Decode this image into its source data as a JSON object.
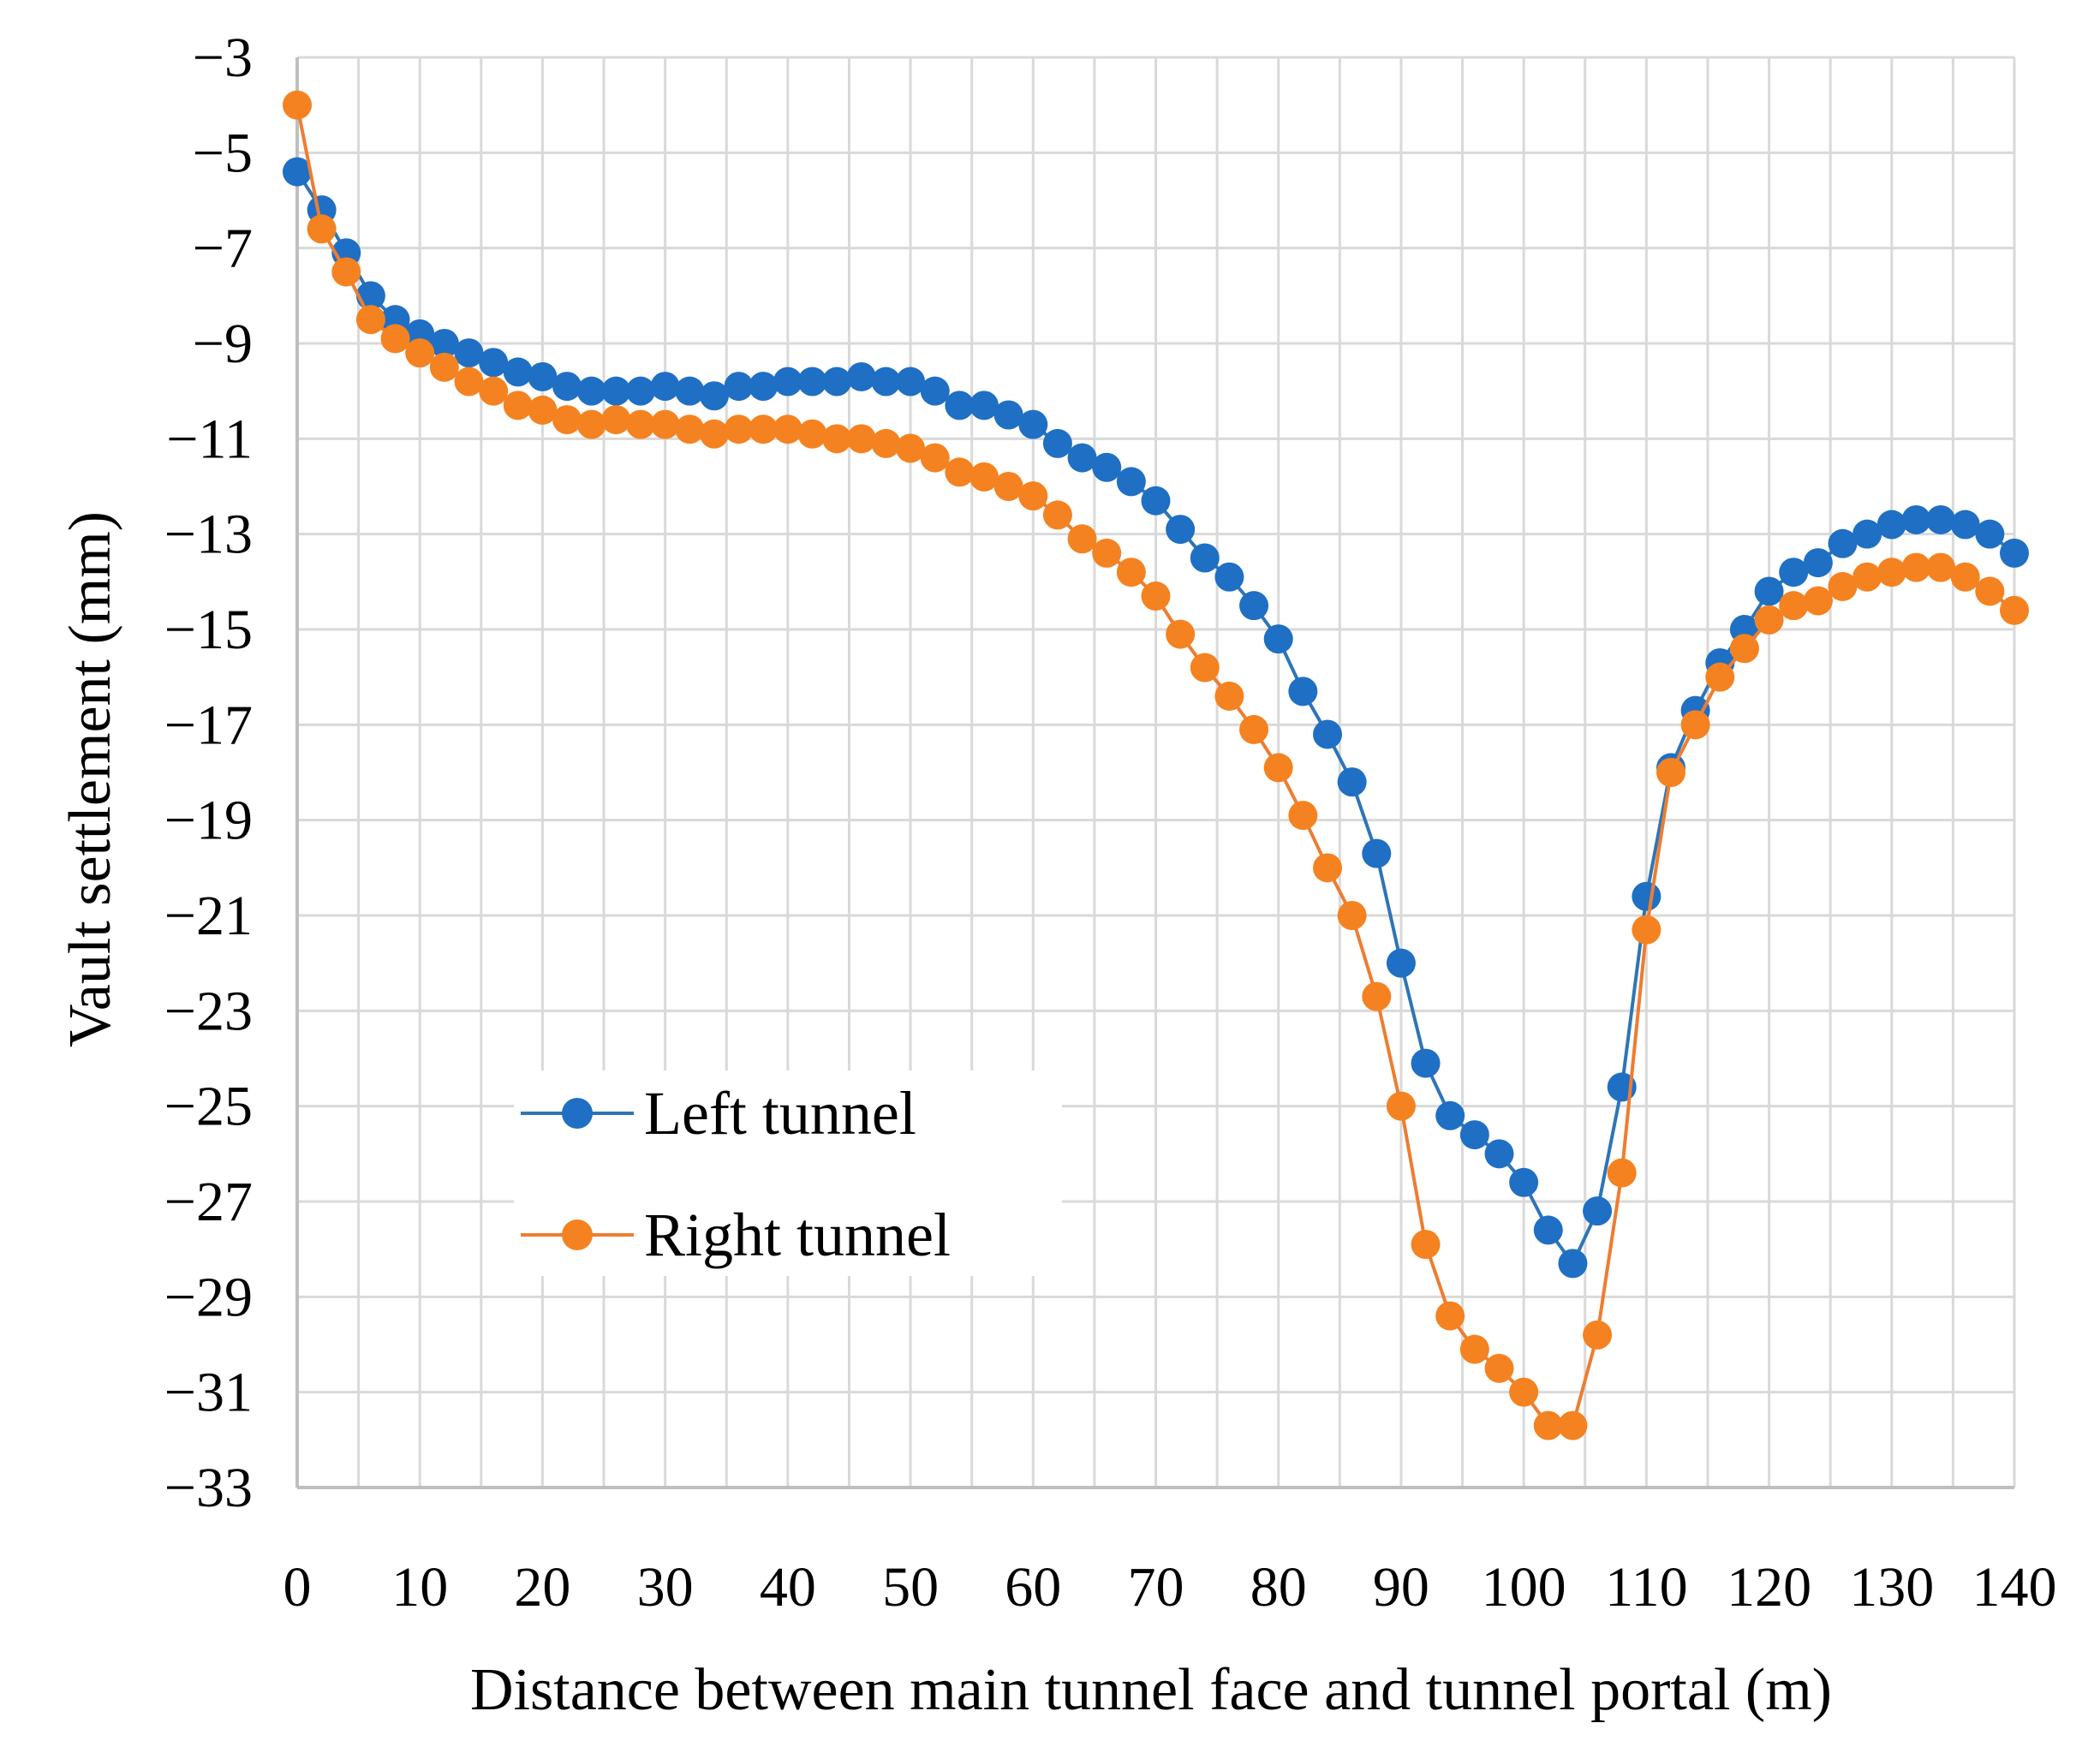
{
  "chart_data": {
    "type": "line",
    "title": "",
    "xlabel": "Distance between main tunnel face and tunnel portal (m)",
    "ylabel": "Vault settlement (mm)",
    "xlim": [
      0,
      140
    ],
    "ylim": [
      -33,
      -3
    ],
    "xticks": [
      0,
      10,
      20,
      30,
      40,
      50,
      60,
      70,
      80,
      90,
      100,
      110,
      120,
      130,
      140
    ],
    "yticks": [
      -3,
      -5,
      -7,
      -9,
      -11,
      -13,
      -15,
      -17,
      -19,
      -21,
      -23,
      -25,
      -27,
      -29,
      -31,
      -33
    ],
    "xtick_labels": [
      "0",
      "10",
      "20",
      "30",
      "40",
      "50",
      "60",
      "70",
      "80",
      "90",
      "100",
      "110",
      "120",
      "130",
      "140"
    ],
    "ytick_labels": [
      "−3",
      "−5",
      "−7",
      "−9",
      "−11",
      "−13",
      "−15",
      "−17",
      "−19",
      "−21",
      "−23",
      "−25",
      "−27",
      "−29",
      "−31",
      "−33"
    ],
    "grid": true,
    "legend_position": "lower-left (inside plot)",
    "x": [
      0,
      2,
      4,
      6,
      8,
      10,
      12,
      14,
      16,
      18,
      20,
      22,
      24,
      26,
      28,
      30,
      32,
      34,
      36,
      38,
      40,
      42,
      44,
      46,
      48,
      50,
      52,
      54,
      56,
      58,
      60,
      62,
      64,
      66,
      68,
      70,
      72,
      74,
      76,
      78,
      80,
      82,
      84,
      86,
      88,
      90,
      92,
      94,
      96,
      98,
      100,
      102,
      104,
      106,
      108,
      110,
      112,
      114,
      116,
      118,
      120,
      122,
      124,
      126,
      128,
      130,
      132,
      134,
      136,
      138,
      140
    ],
    "series": [
      {
        "name": "Left tunnel",
        "color": "#1f6fc4",
        "line_color": "#2e75b6",
        "values": [
          -5.4,
          -6.2,
          -7.1,
          -8.0,
          -8.5,
          -8.8,
          -9.0,
          -9.2,
          -9.4,
          -9.6,
          -9.7,
          -9.9,
          -10.0,
          -10.0,
          -10.0,
          -9.9,
          -10.0,
          -10.1,
          -9.9,
          -9.9,
          -9.8,
          -9.8,
          -9.8,
          -9.7,
          -9.8,
          -9.8,
          -10.0,
          -10.3,
          -10.3,
          -10.5,
          -10.7,
          -11.1,
          -11.4,
          -11.6,
          -11.9,
          -12.3,
          -12.9,
          -13.5,
          -13.9,
          -14.5,
          -15.2,
          -16.3,
          -17.2,
          -18.2,
          -19.7,
          -22.0,
          -24.1,
          -25.2,
          -25.6,
          -26.0,
          -26.6,
          -27.6,
          -28.3,
          -27.2,
          -24.6,
          -20.6,
          -17.9,
          -16.7,
          -15.7,
          -15.0,
          -14.2,
          -13.8,
          -13.6,
          -13.2,
          -13.0,
          -12.8,
          -12.7,
          -12.7,
          -12.8,
          -13.0,
          -13.4
        ]
      },
      {
        "name": "Right tunnel",
        "color": "#f58220",
        "line_color": "#ed7d31",
        "values": [
          -4.0,
          -6.6,
          -7.5,
          -8.5,
          -8.9,
          -9.2,
          -9.5,
          -9.8,
          -10.0,
          -10.3,
          -10.4,
          -10.6,
          -10.7,
          -10.6,
          -10.7,
          -10.7,
          -10.8,
          -10.9,
          -10.8,
          -10.8,
          -10.8,
          -10.9,
          -11.0,
          -11.0,
          -11.1,
          -11.2,
          -11.4,
          -11.7,
          -11.8,
          -12.0,
          -12.2,
          -12.6,
          -13.1,
          -13.4,
          -13.8,
          -14.3,
          -15.1,
          -15.8,
          -16.4,
          -17.1,
          -17.9,
          -18.9,
          -20.0,
          -21.0,
          -22.7,
          -25.0,
          -27.9,
          -29.4,
          -30.1,
          -30.5,
          -31.0,
          -31.7,
          -31.7,
          -29.8,
          -26.4,
          -21.3,
          -18.0,
          -17.0,
          -16.0,
          -15.4,
          -14.8,
          -14.5,
          -14.4,
          -14.1,
          -13.9,
          -13.8,
          -13.7,
          -13.7,
          -13.9,
          -14.2,
          -14.6
        ]
      }
    ]
  }
}
